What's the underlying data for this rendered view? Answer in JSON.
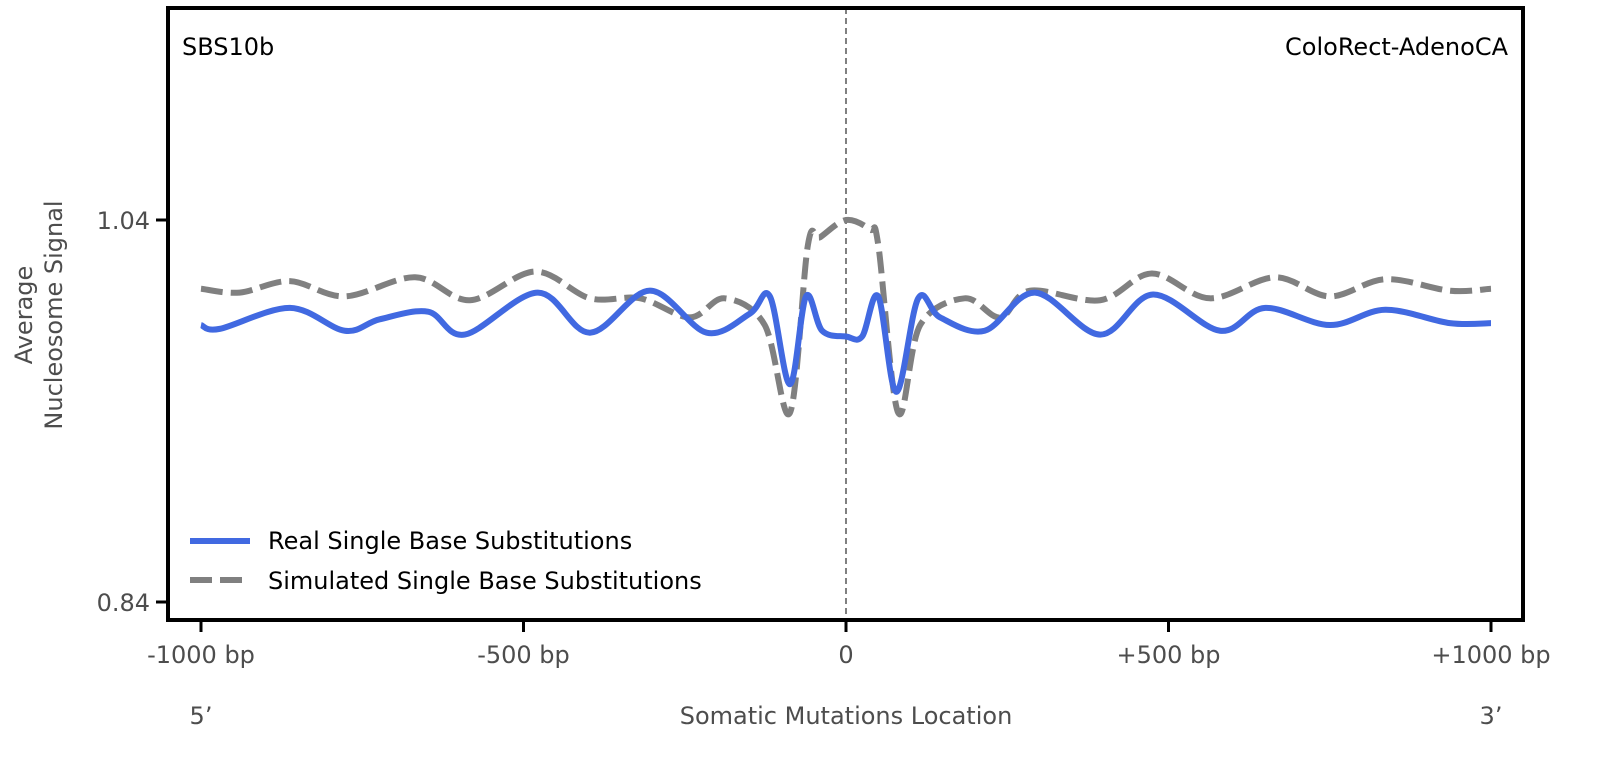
{
  "chart_data": {
    "type": "line",
    "signature_label": "SBS10b",
    "tissue_label": "ColoRect-AdenoCA",
    "xlabel": "Somatic Mutations Location",
    "ylabel_line1": "Average",
    "ylabel_line2": "Nucleosome Signal",
    "xlim": [
      -1000,
      1000
    ],
    "ylim": [
      0.83,
      1.15
    ],
    "x_ticks": [
      {
        "value": -1000,
        "label": "-1000 bp"
      },
      {
        "value": -500,
        "label": "-500 bp"
      },
      {
        "value": 0,
        "label": "0"
      },
      {
        "value": 500,
        "label": "+500 bp"
      },
      {
        "value": 1000,
        "label": "+1000 bp"
      }
    ],
    "y_ticks": [
      {
        "value": 1.04,
        "label": "1.04"
      },
      {
        "value": 0.84,
        "label": "0.84"
      }
    ],
    "end_labels": {
      "left": "5’",
      "right": "3’"
    },
    "vline_x": 0,
    "legend_position": "lower-left",
    "series": [
      {
        "name": "Real Single Base Substitutions",
        "color": "#4169e1",
        "style": "solid",
        "x": [
          -1000,
          -971,
          -862,
          -777,
          -723,
          -648,
          -591,
          -478,
          -397,
          -304,
          -216,
          -149,
          -118,
          -87,
          -62,
          -37,
          0,
          25,
          50,
          78,
          112,
          146,
          215,
          293,
          394,
          476,
          580,
          650,
          750,
          836,
          936,
          1000
        ],
        "y": [
          0.985,
          0.983,
          0.994,
          0.982,
          0.988,
          0.992,
          0.98,
          1.002,
          0.981,
          1.003,
          0.981,
          0.991,
          1.0,
          0.954,
          1.0,
          0.982,
          0.979,
          0.979,
          1.0,
          0.95,
          0.999,
          0.989,
          0.982,
          1.002,
          0.98,
          1.001,
          0.982,
          0.994,
          0.985,
          0.993,
          0.986,
          0.986
        ]
      },
      {
        "name": "Simulated Single Base Substitutions",
        "color": "#808080",
        "style": "dashed",
        "x": [
          -1000,
          -940,
          -862,
          -777,
          -668,
          -583,
          -482,
          -397,
          -319,
          -242,
          -188,
          -126,
          -87,
          -59,
          -40,
          0,
          37,
          50,
          81,
          115,
          184,
          239,
          285,
          394,
          474,
          564,
          665,
          750,
          836,
          936,
          1000
        ],
        "y": [
          1.004,
          1.002,
          1.008,
          1.0,
          1.01,
          0.998,
          1.013,
          0.999,
          0.999,
          0.989,
          0.999,
          0.985,
          0.939,
          1.027,
          1.031,
          1.04,
          1.035,
          1.027,
          0.939,
          0.985,
          0.999,
          0.989,
          1.003,
          0.998,
          1.012,
          0.999,
          1.01,
          1.0,
          1.009,
          1.003,
          1.004
        ]
      }
    ]
  }
}
